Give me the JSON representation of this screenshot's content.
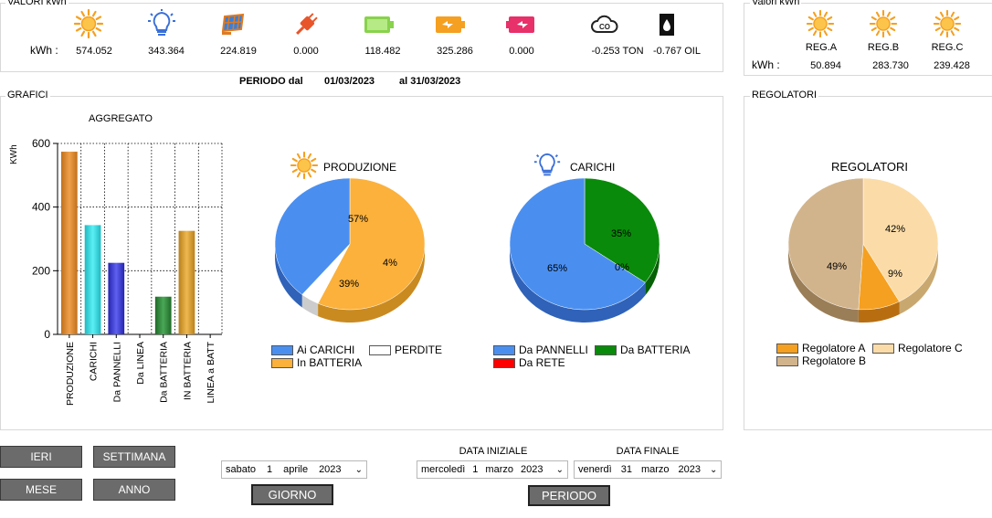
{
  "header": {
    "group_title": "VALORI kWh",
    "kwh_label": "kWh :",
    "icons": [
      "sun-icon",
      "lightbulb-icon",
      "solar-panel-icon",
      "plug-icon",
      "battery-full-icon",
      "battery-charging-icon",
      "battery-discharging-icon",
      "co2-icon",
      "oil-drop-icon"
    ],
    "values": [
      "574.052",
      "343.364",
      "224.819",
      "0.000",
      "118.482",
      "325.286",
      "0.000",
      "-0.253 TON",
      "-0.767 OIL"
    ]
  },
  "regs_header": {
    "group_title": "Valori kWh",
    "kwh_label": "kWh :",
    "labels": [
      "REG.A",
      "REG.B",
      "REG.C"
    ],
    "values": [
      "50.894",
      "283.730",
      "239.428"
    ]
  },
  "periodo": {
    "label": "PERIODO dal",
    "from": "01/03/2023",
    "to_label": "al 31/03/2023"
  },
  "grafici": {
    "group_title": "GRAFICI"
  },
  "regolatori": {
    "group_title": "REGOLATORI"
  },
  "colors": {
    "produzione": "#e8952e",
    "carichi": "#34e0e6",
    "pannelli": "#3d3ddc",
    "batteria_da": "#2e8a3a",
    "batteria_in": "#e6a43a",
    "pie_blue": "#4a8ff0",
    "pie_orange": "#fbb13c",
    "pie_green": "#0a8a0a",
    "pie_red": "#ff0000",
    "reg_a": "#f5a020",
    "reg_b": "#d2b48c",
    "reg_c": "#fbdca8"
  },
  "chart_data": [
    {
      "type": "bar",
      "title": "AGGREGATO",
      "ylabel": "KWh",
      "ylim": [
        0,
        600
      ],
      "yticks": [
        "0",
        "200",
        "400",
        "600"
      ],
      "categories": [
        "PRODUZIONE",
        "CARICHI",
        "Da PANNELLI",
        "Da LINEA",
        "Da BATTERIA",
        "IN BATTERIA",
        "LINEA a BATT"
      ],
      "values": [
        574.052,
        343.364,
        224.819,
        0,
        118.482,
        325.286,
        0
      ],
      "grid": true
    },
    {
      "type": "pie",
      "title": "PRODUZIONE",
      "labels": [
        "Ai CARICHI",
        "PERDITE",
        "In BATTERIA"
      ],
      "values": [
        39,
        4,
        57
      ],
      "value_labels": [
        "39%",
        "4%",
        "57%"
      ]
    },
    {
      "type": "pie",
      "title": "CARICHI",
      "labels": [
        "Da PANNELLI",
        "Da BATTERIA",
        "Da RETE"
      ],
      "values": [
        65,
        35,
        0
      ],
      "value_labels": [
        "65%",
        "35%",
        "0%"
      ]
    },
    {
      "type": "pie",
      "title": "REGOLATORI",
      "labels": [
        "Regolatore A",
        "Regolatore C",
        "Regolatore B"
      ],
      "values": [
        9,
        42,
        49
      ],
      "value_labels": [
        "9%",
        "42%",
        "49%"
      ]
    }
  ],
  "buttons": {
    "ieri": "IERI",
    "settimana": "SETTIMANA",
    "mese": "MESE",
    "anno": "ANNO",
    "giorno": "GIORNO",
    "periodo": "PERIODO"
  },
  "dates": {
    "single": {
      "weekday": "sabato",
      "day": "1",
      "month": "aprile",
      "year": "2023"
    },
    "start_label": "DATA INIZIALE",
    "end_label": "DATA FINALE",
    "start": {
      "weekday": "mercoledì",
      "day": "1",
      "month": "marzo",
      "year": "2023"
    },
    "end": {
      "weekday": "venerdì",
      "day": "31",
      "month": "marzo",
      "year": "2023"
    }
  }
}
